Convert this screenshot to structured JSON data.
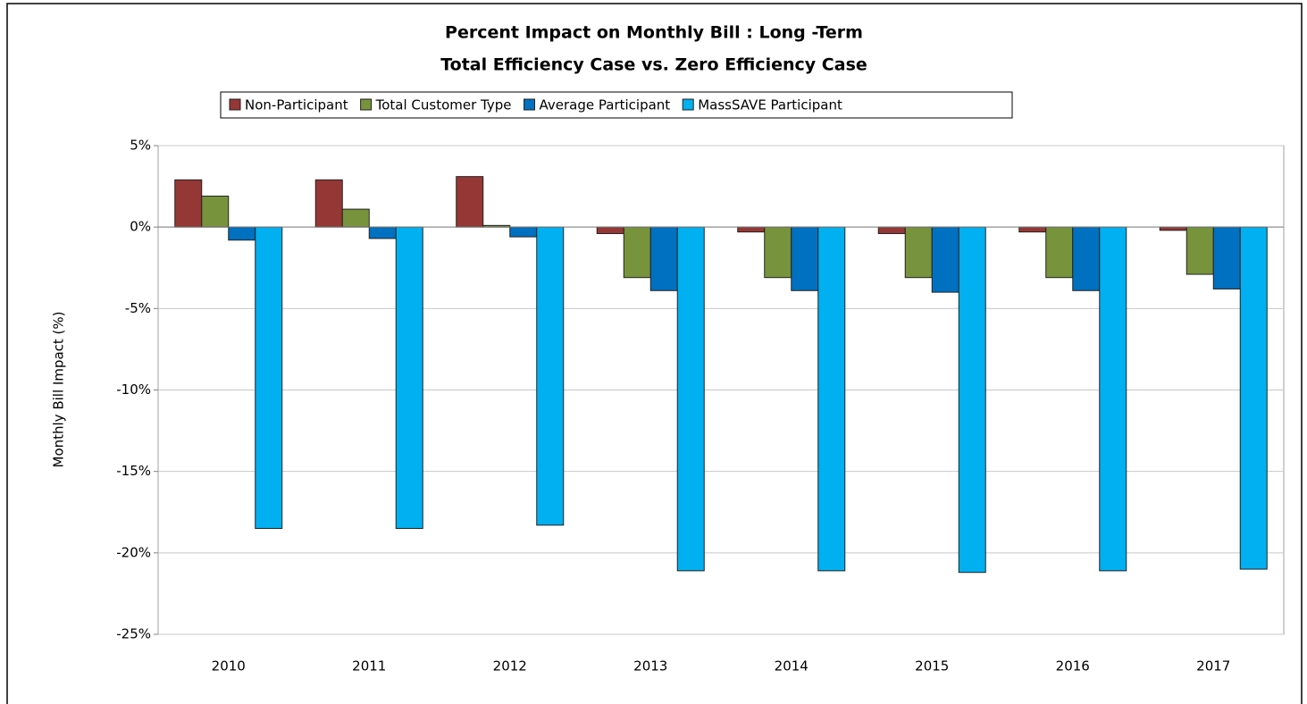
{
  "chart_data": {
    "type": "bar",
    "title": "Percent Impact on Monthly Bill : Long -Term",
    "subtitle": "Total Efficiency Case vs. Zero Efficiency Case",
    "y_label": "Monthly Bill Impact (%)",
    "categories": [
      "2010",
      "2011",
      "2012",
      "2013",
      "2014",
      "2015",
      "2016",
      "2017"
    ],
    "series": [
      {
        "name": "Non-Participant",
        "color": "#953735",
        "values": [
          2.9,
          2.9,
          3.1,
          -0.4,
          -0.3,
          -0.4,
          -0.3,
          -0.2
        ]
      },
      {
        "name": "Total Customer Type",
        "color": "#77933c",
        "values": [
          1.9,
          1.1,
          0.1,
          -3.1,
          -3.1,
          -3.1,
          -3.1,
          -2.9
        ]
      },
      {
        "name": "Average Participant",
        "color": "#0070c0",
        "values": [
          -0.8,
          -0.7,
          -0.6,
          -3.9,
          -3.9,
          -4.0,
          -3.9,
          -3.8
        ]
      },
      {
        "name": "MassSAVE Participant",
        "color": "#00b0f0",
        "values": [
          -18.5,
          -18.5,
          -18.3,
          -21.1,
          -21.1,
          -21.2,
          -21.1,
          -21.0
        ]
      }
    ],
    "ylim": [
      -25,
      5
    ],
    "yticks": [
      {
        "value": 5,
        "label": "5%"
      },
      {
        "value": 0,
        "label": "0%"
      },
      {
        "value": -5,
        "label": "-5%"
      },
      {
        "value": -10,
        "label": "-10%"
      },
      {
        "value": -15,
        "label": "-15%"
      },
      {
        "value": -20,
        "label": "-20%"
      },
      {
        "value": -25,
        "label": "-25%"
      }
    ],
    "grid": true,
    "legend": "top"
  }
}
